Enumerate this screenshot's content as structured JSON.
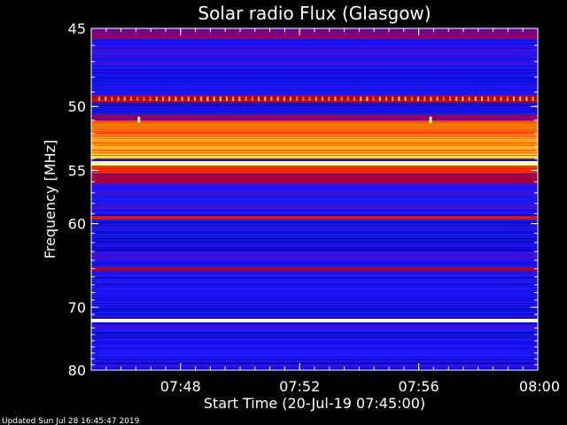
{
  "chart_data": {
    "type": "heatmap",
    "title": "Solar radio Flux (Glasgow)",
    "xlabel": "Start Time (20-Jul-19 07:45:00)",
    "ylabel": "Frequency [MHz]",
    "x_range_minutes": [
      0,
      15
    ],
    "x_ticks": [
      {
        "minute": 3,
        "label": "07:48"
      },
      {
        "minute": 7,
        "label": "07:52"
      },
      {
        "minute": 11,
        "label": "07:56"
      },
      {
        "minute": 15,
        "label": "08:00"
      }
    ],
    "y_range_mhz": [
      45,
      80
    ],
    "y_ticks": [
      {
        "value": 45,
        "label": "45"
      },
      {
        "value": 50,
        "label": "50"
      },
      {
        "value": 55,
        "label": "55"
      },
      {
        "value": 60,
        "label": "60"
      },
      {
        "value": 70,
        "label": "70"
      },
      {
        "value": 80,
        "label": "80"
      }
    ],
    "y_scale": "reciprocal",
    "colormap": [
      "#000000",
      "#0000a0",
      "#1a1aff",
      "#7000a0",
      "#c00000",
      "#ff2000",
      "#ff8000",
      "#ffff80",
      "#ffffff"
    ],
    "background_level": 0.22,
    "bands": [
      {
        "from": 45.0,
        "to": 45.6,
        "level": 0.4
      },
      {
        "from": 46.0,
        "to": 47.5,
        "level": 0.25
      },
      {
        "from": 48.0,
        "to": 48.8,
        "level": 0.12
      },
      {
        "from": 49.2,
        "to": 49.7,
        "level": 0.5
      },
      {
        "from": 50.6,
        "to": 51.0,
        "level": 0.4
      },
      {
        "from": 51.0,
        "to": 52.2,
        "level": 0.72
      },
      {
        "from": 52.2,
        "to": 54.0,
        "level": 0.78
      },
      {
        "from": 54.2,
        "to": 54.6,
        "level": 0.9
      },
      {
        "from": 54.6,
        "to": 55.3,
        "level": 0.62
      },
      {
        "from": 55.3,
        "to": 56.2,
        "level": 0.42
      },
      {
        "from": 56.2,
        "to": 58.5,
        "level": 0.26
      },
      {
        "from": 59.2,
        "to": 59.6,
        "level": 0.62
      },
      {
        "from": 60.0,
        "to": 63.0,
        "level": 0.15
      },
      {
        "from": 63.0,
        "to": 63.8,
        "level": 0.3
      },
      {
        "from": 64.7,
        "to": 65.2,
        "level": 0.45
      },
      {
        "from": 66.0,
        "to": 68.0,
        "level": 0.2
      },
      {
        "from": 71.6,
        "to": 72.2,
        "level": 0.95
      },
      {
        "from": 72.7,
        "to": 73.2,
        "level": 0.26
      },
      {
        "from": 74.2,
        "to": 75.0,
        "level": 0.18
      },
      {
        "from": 76.0,
        "to": 77.5,
        "level": 0.14
      },
      {
        "from": 78.5,
        "to": 80.0,
        "level": 0.2
      }
    ],
    "spike_row_mhz": 49.5,
    "bursts": [
      {
        "minute": 1.6,
        "mhz": 51.0
      },
      {
        "minute": 11.4,
        "mhz": 51.0
      }
    ]
  },
  "footer": {
    "updated": "Updated Sun Jul 28 16:45:47 2019"
  }
}
